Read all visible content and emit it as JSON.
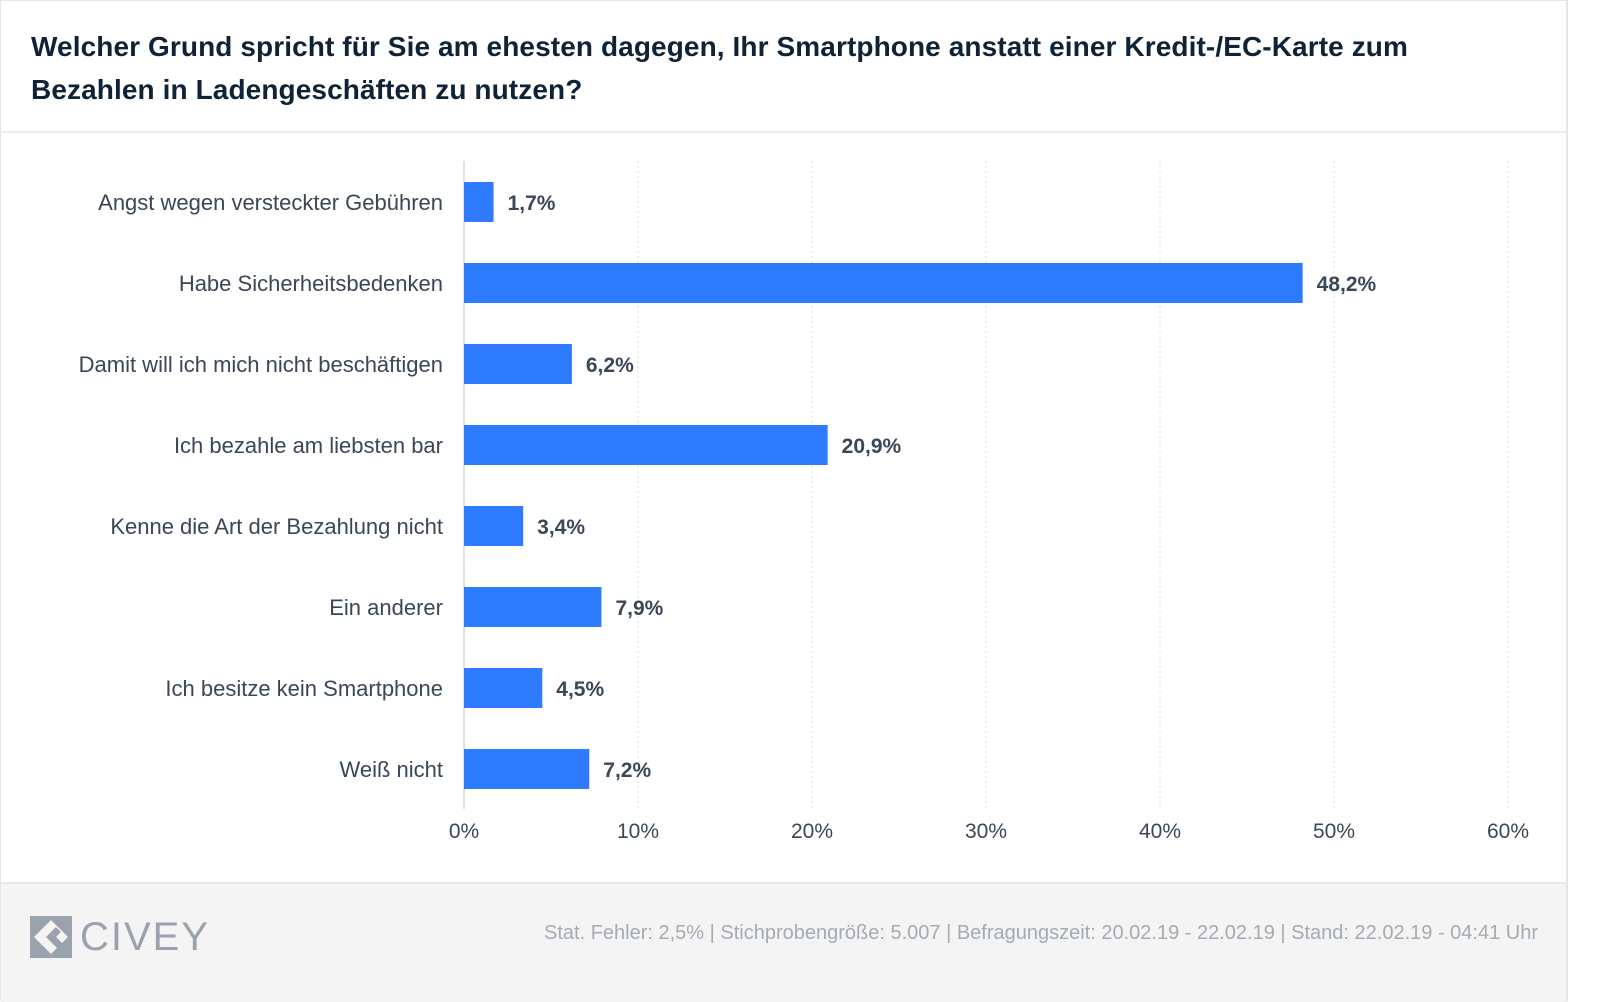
{
  "header": {
    "title": "Welcher Grund spricht für Sie am ehesten dagegen, Ihr Smartphone anstatt einer Kredit-/EC-Karte zum Bezahlen in Ladengeschäften zu nutzen?"
  },
  "colors": {
    "bar": "#2f7bff",
    "title": "#0f2236",
    "label": "#3a4756",
    "value_label": "#3a4756",
    "grid": "#dcdcdc",
    "footer_text": "#a4abb3",
    "logo": "#9aa3ad"
  },
  "chart_data": {
    "type": "bar",
    "orientation": "horizontal",
    "title": "Welcher Grund spricht für Sie am ehesten dagegen, Ihr Smartphone anstatt einer Kredit-/EC-Karte zum Bezahlen in Ladengeschäften zu nutzen?",
    "categories": [
      "Angst wegen versteckter Gebühren",
      "Habe Sicherheitsbedenken",
      "Damit will ich mich nicht beschäftigen",
      "Ich bezahle am liebsten bar",
      "Kenne die Art der Bezahlung nicht",
      "Ein anderer",
      "Ich besitze kein Smartphone",
      "Weiß nicht"
    ],
    "values": [
      1.7,
      48.2,
      6.2,
      20.9,
      3.4,
      7.9,
      4.5,
      7.2
    ],
    "value_labels": [
      "1,7%",
      "48,2%",
      "6,2%",
      "20,9%",
      "3,4%",
      "7,9%",
      "4,5%",
      "7,2%"
    ],
    "xlabel": "",
    "ylabel": "",
    "xlim": [
      0,
      60
    ],
    "x_ticks": [
      0,
      10,
      20,
      30,
      40,
      50,
      60
    ],
    "x_tick_labels": [
      "0%",
      "10%",
      "20%",
      "30%",
      "40%",
      "50%",
      "60%"
    ],
    "grid": true,
    "legend": "none"
  },
  "footer": {
    "logo_text": "CIVEY",
    "meta": "Stat. Fehler: 2,5% | Stichprobengröße: 5.007 | Befragungszeit: 20.02.19 - 22.02.19 | Stand: 22.02.19 - 04:41 Uhr"
  }
}
